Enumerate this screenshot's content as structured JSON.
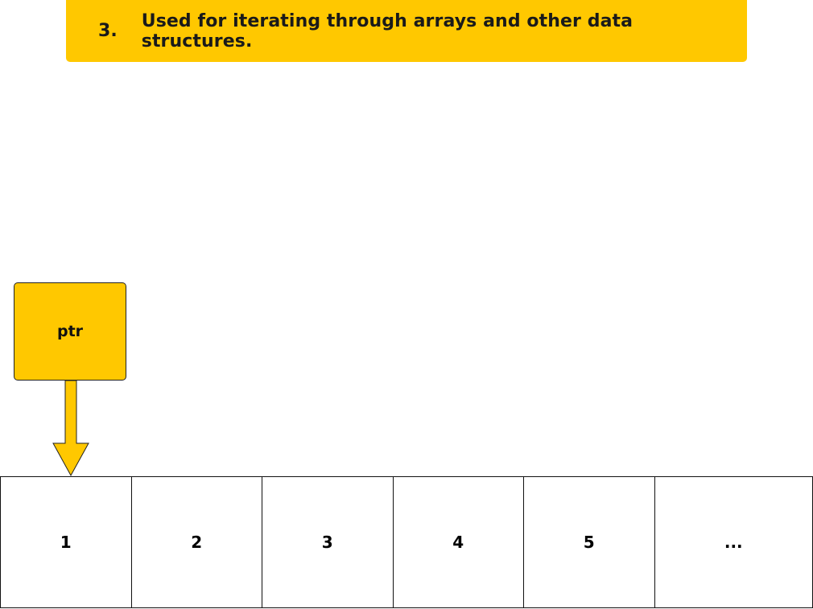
{
  "banner": {
    "number": "3.",
    "text": "Used for iterating through arrays and other data structures."
  },
  "pointer": {
    "label": "ptr"
  },
  "array": {
    "cells": [
      "1",
      "2",
      "3",
      "4",
      "5",
      "..."
    ]
  },
  "colors": {
    "accent": "#FFC800",
    "outline": "#222222"
  }
}
